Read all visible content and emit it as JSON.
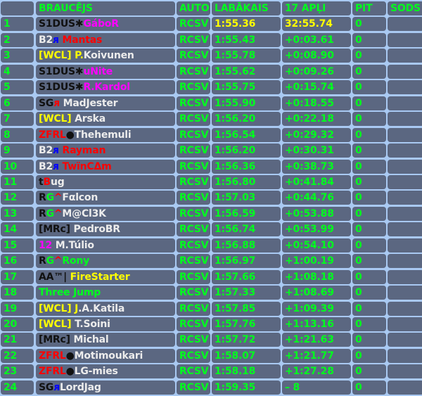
{
  "colors": {
    "green": "#00ff1e",
    "yellow": "#ffff00",
    "white": "#ececec",
    "black": "#111111",
    "magenta": "#ff00ff",
    "red": "#ff0000",
    "blue": "#0000ff",
    "cell": "#5b6781",
    "grid": "#a9c9f2"
  },
  "header": {
    "pos": "",
    "driver": "BRAUCĒJS",
    "car": "AUTO",
    "best": "LABĀKAIS",
    "total": "17 APĻI",
    "pit": "PIT",
    "penalty": "SODS"
  },
  "rows": [
    {
      "pos": "1",
      "name": [
        {
          "t": "S1DUS✱",
          "c": "black"
        },
        {
          "t": "GáboR",
          "c": "magenta"
        }
      ],
      "car": "RCSV",
      "best": "1:55.36",
      "total": "32:55.74",
      "pit": "0",
      "penalty": "",
      "leader": true
    },
    {
      "pos": "2",
      "name": [
        {
          "t": "B2",
          "c": "white"
        },
        {
          "t": "ᴙ",
          "c": "blue"
        },
        {
          "t": " Mantas",
          "c": "red"
        }
      ],
      "car": "RCSV",
      "best": "1:55.43",
      "total": "+0:03.61",
      "pit": "0",
      "penalty": ""
    },
    {
      "pos": "3",
      "name": [
        {
          "t": "[WCL] P.",
          "c": "yellow"
        },
        {
          "t": "Koivunen",
          "c": "white"
        }
      ],
      "car": "RCSV",
      "best": "1:55.78",
      "total": "+0:08.90",
      "pit": "0",
      "penalty": ""
    },
    {
      "pos": "4",
      "name": [
        {
          "t": "S1DUS✱",
          "c": "black"
        },
        {
          "t": "uNite",
          "c": "magenta"
        }
      ],
      "car": "RCSV",
      "best": "1:55.62",
      "total": "+0:09.26",
      "pit": "0",
      "penalty": ""
    },
    {
      "pos": "5",
      "name": [
        {
          "t": "S1DUS✱",
          "c": "black"
        },
        {
          "t": "R.Kardol",
          "c": "magenta"
        }
      ],
      "car": "RCSV",
      "best": "1:55.75",
      "total": "+0:15.74",
      "pit": "0",
      "penalty": ""
    },
    {
      "pos": "6",
      "name": [
        {
          "t": "SG",
          "c": "black"
        },
        {
          "t": "ᴙ",
          "c": "red"
        },
        {
          "t": " MadJester",
          "c": "white"
        }
      ],
      "car": "RCSV",
      "best": "1:55.90",
      "total": "+0:18.55",
      "pit": "0",
      "penalty": ""
    },
    {
      "pos": "7",
      "name": [
        {
          "t": "[WCL]",
          "c": "yellow"
        },
        {
          "t": " Arska",
          "c": "white"
        }
      ],
      "car": "RCSV",
      "best": "1:56.20",
      "total": "+0:22.18",
      "pit": "0",
      "penalty": ""
    },
    {
      "pos": "8",
      "name": [
        {
          "t": "ZFRL",
          "c": "red"
        },
        {
          "t": "●",
          "c": "black"
        },
        {
          "t": "Thehemuli",
          "c": "white"
        }
      ],
      "car": "RCSV",
      "best": "1:56.54",
      "total": "+0:29.32",
      "pit": "0",
      "penalty": ""
    },
    {
      "pos": "9",
      "name": [
        {
          "t": "B2",
          "c": "white"
        },
        {
          "t": "ᴙ",
          "c": "blue"
        },
        {
          "t": " Rayman",
          "c": "red"
        }
      ],
      "car": "RCSV",
      "best": "1:56.20",
      "total": "+0:30.31",
      "pit": "0",
      "penalty": ""
    },
    {
      "pos": "10",
      "name": [
        {
          "t": "B2",
          "c": "white"
        },
        {
          "t": "ᴙ",
          "c": "blue"
        },
        {
          "t": " TwïnCΔm",
          "c": "red"
        }
      ],
      "car": "RCSV",
      "best": "1:56.36",
      "total": "+0:38.73",
      "pit": "0",
      "penalty": ""
    },
    {
      "pos": "11",
      "name": [
        {
          "t": "t",
          "c": "black"
        },
        {
          "t": "B",
          "c": "red"
        },
        {
          "t": "ug",
          "c": "white"
        }
      ],
      "car": "RCSV",
      "best": "1:56.80",
      "total": "+0:41.84",
      "pit": "0",
      "penalty": ""
    },
    {
      "pos": "12",
      "name": [
        {
          "t": "R",
          "c": "black"
        },
        {
          "t": "G",
          "c": "green"
        },
        {
          "t": "^",
          "c": "red"
        },
        {
          "t": "Fαlcon",
          "c": "white"
        }
      ],
      "car": "RCSV",
      "best": "1:57.03",
      "total": "+0:44.76",
      "pit": "0",
      "penalty": ""
    },
    {
      "pos": "13",
      "name": [
        {
          "t": "R",
          "c": "black"
        },
        {
          "t": "G",
          "c": "green"
        },
        {
          "t": "^",
          "c": "red"
        },
        {
          "t": "M@Cl3K",
          "c": "white"
        }
      ],
      "car": "RCSV",
      "best": "1:56.59",
      "total": "+0:53.88",
      "pit": "0",
      "penalty": ""
    },
    {
      "pos": "14",
      "name": [
        {
          "t": "[MRc]",
          "c": "black"
        },
        {
          "t": " PedroBR",
          "c": "white"
        }
      ],
      "car": "RCSV",
      "best": "1:56.74",
      "total": "+0:53.99",
      "pit": "0",
      "penalty": ""
    },
    {
      "pos": "15",
      "name": [
        {
          "t": "12",
          "c": "magenta"
        },
        {
          "t": " M.Túlio",
          "c": "white"
        }
      ],
      "car": "RCSV",
      "best": "1:56.88",
      "total": "+0:54.10",
      "pit": "0",
      "penalty": ""
    },
    {
      "pos": "16",
      "name": [
        {
          "t": "R",
          "c": "black"
        },
        {
          "t": "G",
          "c": "green"
        },
        {
          "t": "^",
          "c": "red"
        },
        {
          "t": "Rony",
          "c": "green"
        }
      ],
      "car": "RCSV",
      "best": "1:56.97",
      "total": "+1:00.19",
      "pit": "0",
      "penalty": ""
    },
    {
      "pos": "17",
      "name": [
        {
          "t": "AA™|",
          "c": "black"
        },
        {
          "t": " FireStarter",
          "c": "yellow"
        }
      ],
      "car": "RCSV",
      "best": "1:57.66",
      "total": "+1:08.18",
      "pit": "0",
      "penalty": ""
    },
    {
      "pos": "18",
      "name": [
        {
          "t": "Three Jump",
          "c": "green"
        }
      ],
      "car": "RCSV",
      "best": "1:57.33",
      "total": "+1:08.69",
      "pit": "0",
      "penalty": ""
    },
    {
      "pos": "19",
      "name": [
        {
          "t": "[WCL] J",
          "c": "yellow"
        },
        {
          "t": ".A.Katila",
          "c": "white"
        }
      ],
      "car": "RCSV",
      "best": "1:57.85",
      "total": "+1:09.39",
      "pit": "0",
      "penalty": ""
    },
    {
      "pos": "20",
      "name": [
        {
          "t": "[WCL]",
          "c": "yellow"
        },
        {
          "t": " T.Soini",
          "c": "white"
        }
      ],
      "car": "RCSV",
      "best": "1:57.76",
      "total": "+1:13.16",
      "pit": "0",
      "penalty": ""
    },
    {
      "pos": "21",
      "name": [
        {
          "t": "[MRc]",
          "c": "black"
        },
        {
          "t": " Michal",
          "c": "white"
        }
      ],
      "car": "RCSV",
      "best": "1:57.72",
      "total": "+1:21.63",
      "pit": "0",
      "penalty": ""
    },
    {
      "pos": "22",
      "name": [
        {
          "t": "ZFRL",
          "c": "red"
        },
        {
          "t": "●",
          "c": "black"
        },
        {
          "t": "Motimoukari",
          "c": "white"
        }
      ],
      "car": "RCSV",
      "best": "1:58.07",
      "total": "+1:21.77",
      "pit": "0",
      "penalty": ""
    },
    {
      "pos": "23",
      "name": [
        {
          "t": "ZFRL",
          "c": "red"
        },
        {
          "t": "●",
          "c": "black"
        },
        {
          "t": "LG-mies",
          "c": "white"
        }
      ],
      "car": "RCSV",
      "best": "1:58.18",
      "total": "+1:27.28",
      "pit": "0",
      "penalty": ""
    },
    {
      "pos": "24",
      "name": [
        {
          "t": "SG",
          "c": "black"
        },
        {
          "t": "ᴙ",
          "c": "blue"
        },
        {
          "t": "LordJag",
          "c": "white"
        }
      ],
      "car": "RCSV",
      "best": "1:59.35",
      "total": "– 8",
      "pit": "0",
      "penalty": ""
    }
  ]
}
